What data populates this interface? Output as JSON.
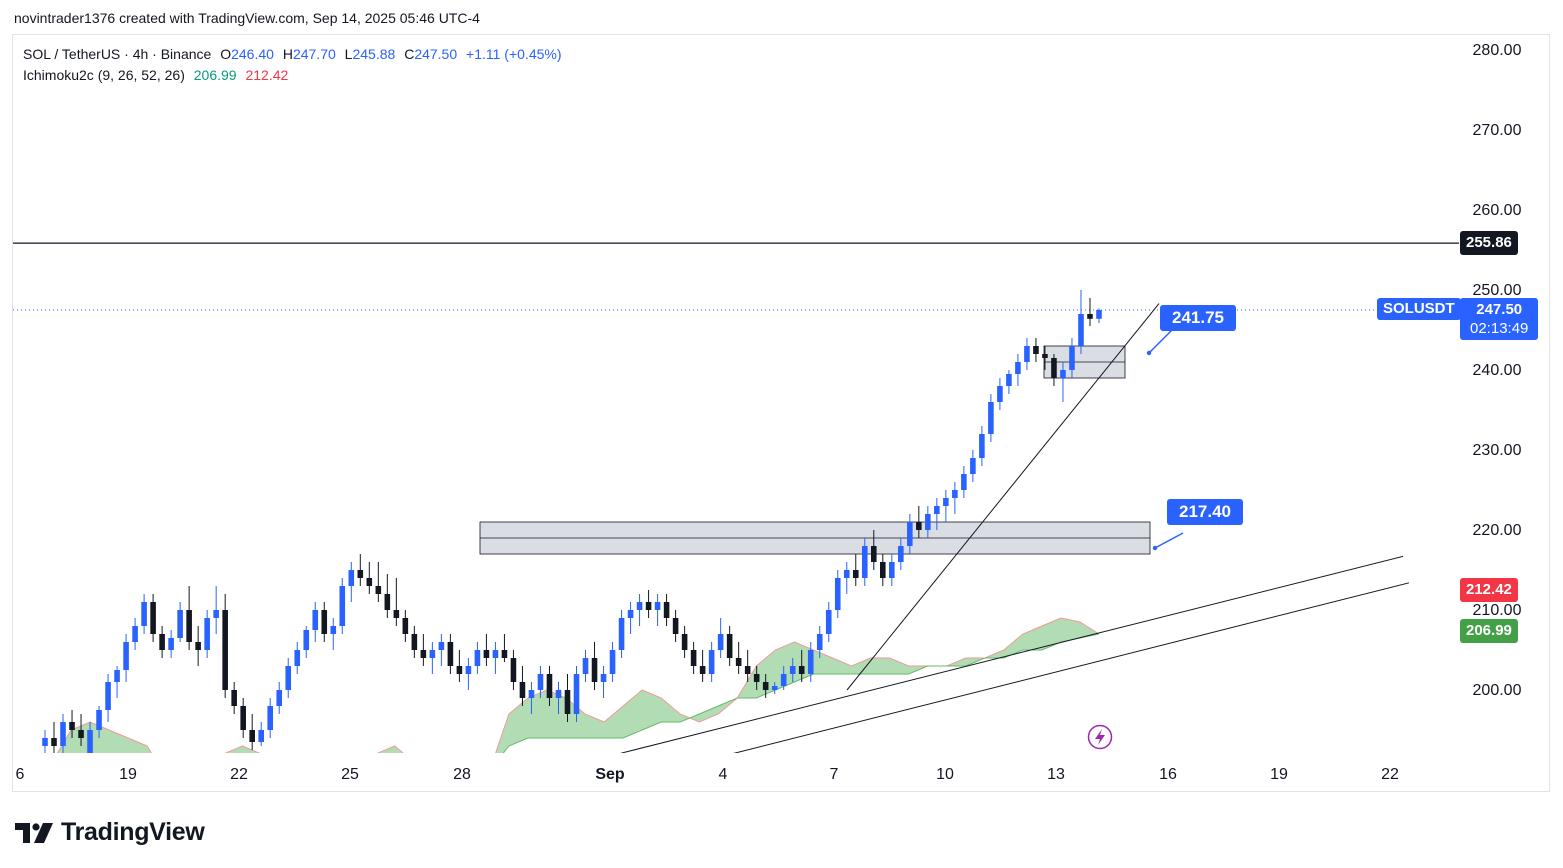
{
  "header": {
    "text": "novintrader1376 created with TradingView.com, Sep 14, 2025 05:46 UTC-4"
  },
  "legend": {
    "symbol": "SOL / TetherUS · 4h · Binance",
    "open_label": "O",
    "open": "246.40",
    "high_label": "H",
    "high": "247.70",
    "low_label": "L",
    "low": "245.88",
    "close_label": "C",
    "close": "247.50",
    "change": "+1.11 (+0.45%)",
    "indicator": "Ichimoku2c (9, 26, 52, 26)",
    "ind_value1": "206.99",
    "ind_value2": "212.42"
  },
  "price_axis": {
    "ticks": [
      "280.00",
      "270.00",
      "260.00",
      "250.00",
      "240.00",
      "230.00",
      "220.00",
      "210.00",
      "200.00"
    ]
  },
  "time_axis": {
    "ticks": [
      "6",
      "19",
      "22",
      "25",
      "28",
      "Sep",
      "4",
      "7",
      "10",
      "13",
      "16",
      "19",
      "22"
    ]
  },
  "tags": {
    "resistance": "255.86",
    "symbol_tag": "SOLUSDT",
    "last_price": "247.50",
    "countdown": "02:13:49",
    "ichimoku_red": "212.42",
    "ichimoku_green": "206.99",
    "callout_upper": "241.75",
    "callout_lower": "217.40"
  },
  "colors": {
    "up": "#2962ff",
    "down": "#131722",
    "cloud_fill": "#a5d6a7",
    "cloud_edge": "#ef9a9a",
    "callout": "#2962ff",
    "red_tag": "#f23645",
    "green_tag": "#43a047"
  },
  "branding": {
    "logo_text": "TradingView",
    "logo_icon": "tradingview-logo-icon"
  },
  "chart_data": {
    "type": "candlestick",
    "symbol": "SOL / TetherUS",
    "interval": "4h",
    "exchange": "Binance",
    "ylim": [
      191,
      281
    ],
    "x_ticks": [
      "6",
      "19",
      "22",
      "25",
      "28",
      "Sep",
      "4",
      "7",
      "10",
      "13",
      "16",
      "19",
      "22"
    ],
    "candles": [
      {
        "o": 193,
        "h": 195,
        "l": 191,
        "c": 194
      },
      {
        "o": 194,
        "h": 196,
        "l": 192,
        "c": 193
      },
      {
        "o": 193,
        "h": 197,
        "l": 192,
        "c": 196
      },
      {
        "o": 196,
        "h": 197.5,
        "l": 194,
        "c": 195
      },
      {
        "o": 195,
        "h": 197,
        "l": 193,
        "c": 194
      },
      {
        "o": 192,
        "h": 196,
        "l": 191,
        "c": 195
      },
      {
        "o": 195,
        "h": 198,
        "l": 194,
        "c": 197.5
      },
      {
        "o": 197.5,
        "h": 202,
        "l": 196,
        "c": 201
      },
      {
        "o": 201,
        "h": 203,
        "l": 199,
        "c": 202.5
      },
      {
        "o": 202.5,
        "h": 207,
        "l": 201,
        "c": 206
      },
      {
        "o": 206,
        "h": 209,
        "l": 205,
        "c": 208
      },
      {
        "o": 208,
        "h": 212,
        "l": 207,
        "c": 211
      },
      {
        "o": 211,
        "h": 212,
        "l": 206,
        "c": 207
      },
      {
        "o": 207,
        "h": 208,
        "l": 204,
        "c": 205
      },
      {
        "o": 205,
        "h": 207.5,
        "l": 204,
        "c": 206.5
      },
      {
        "o": 206.5,
        "h": 211,
        "l": 206,
        "c": 210
      },
      {
        "o": 210,
        "h": 213,
        "l": 205,
        "c": 206
      },
      {
        "o": 206,
        "h": 208,
        "l": 203,
        "c": 205
      },
      {
        "o": 205,
        "h": 210,
        "l": 204,
        "c": 209
      },
      {
        "o": 209,
        "h": 213,
        "l": 207,
        "c": 210
      },
      {
        "o": 210,
        "h": 212,
        "l": 199,
        "c": 200
      },
      {
        "o": 200,
        "h": 201,
        "l": 197,
        "c": 198
      },
      {
        "o": 198,
        "h": 199,
        "l": 194,
        "c": 195
      },
      {
        "o": 195,
        "h": 197,
        "l": 192.5,
        "c": 193.5
      },
      {
        "o": 193.5,
        "h": 196,
        "l": 193,
        "c": 195
      },
      {
        "o": 195,
        "h": 199,
        "l": 194,
        "c": 198
      },
      {
        "o": 198,
        "h": 201,
        "l": 197,
        "c": 200
      },
      {
        "o": 200,
        "h": 204,
        "l": 199,
        "c": 203
      },
      {
        "o": 203,
        "h": 206,
        "l": 202,
        "c": 205
      },
      {
        "o": 205,
        "h": 208,
        "l": 204,
        "c": 207.5
      },
      {
        "o": 207.5,
        "h": 211,
        "l": 206,
        "c": 210
      },
      {
        "o": 210,
        "h": 211,
        "l": 206,
        "c": 207
      },
      {
        "o": 207,
        "h": 209,
        "l": 205,
        "c": 208
      },
      {
        "o": 208,
        "h": 214,
        "l": 207,
        "c": 213
      },
      {
        "o": 213,
        "h": 216,
        "l": 211,
        "c": 215
      },
      {
        "o": 215,
        "h": 217,
        "l": 213,
        "c": 214
      },
      {
        "o": 214,
        "h": 216,
        "l": 212,
        "c": 213
      },
      {
        "o": 213,
        "h": 216,
        "l": 211,
        "c": 212
      },
      {
        "o": 212,
        "h": 214.5,
        "l": 209,
        "c": 210
      },
      {
        "o": 210,
        "h": 214,
        "l": 208,
        "c": 209
      },
      {
        "o": 209,
        "h": 210,
        "l": 206,
        "c": 207
      },
      {
        "o": 207,
        "h": 208,
        "l": 204,
        "c": 205
      },
      {
        "o": 205,
        "h": 207,
        "l": 203,
        "c": 204
      },
      {
        "o": 204,
        "h": 206,
        "l": 202,
        "c": 205
      },
      {
        "o": 205,
        "h": 207,
        "l": 203,
        "c": 206
      },
      {
        "o": 206,
        "h": 207,
        "l": 202,
        "c": 203
      },
      {
        "o": 203,
        "h": 205,
        "l": 201,
        "c": 202
      },
      {
        "o": 202,
        "h": 204,
        "l": 200,
        "c": 203
      },
      {
        "o": 203,
        "h": 206,
        "l": 202,
        "c": 205
      },
      {
        "o": 205,
        "h": 207,
        "l": 203,
        "c": 204
      },
      {
        "o": 204,
        "h": 206,
        "l": 202,
        "c": 205
      },
      {
        "o": 205,
        "h": 207,
        "l": 203.5,
        "c": 204
      },
      {
        "o": 204,
        "h": 205,
        "l": 200,
        "c": 201
      },
      {
        "o": 201,
        "h": 203,
        "l": 198,
        "c": 199
      },
      {
        "o": 199,
        "h": 201,
        "l": 197,
        "c": 200
      },
      {
        "o": 200,
        "h": 203,
        "l": 199,
        "c": 202
      },
      {
        "o": 202,
        "h": 203,
        "l": 198,
        "c": 199
      },
      {
        "o": 199,
        "h": 201,
        "l": 197,
        "c": 200
      },
      {
        "o": 200,
        "h": 202,
        "l": 196,
        "c": 197
      },
      {
        "o": 197,
        "h": 203,
        "l": 196,
        "c": 202
      },
      {
        "o": 202,
        "h": 205,
        "l": 201,
        "c": 204
      },
      {
        "o": 204,
        "h": 206,
        "l": 200,
        "c": 201
      },
      {
        "o": 201,
        "h": 203,
        "l": 199,
        "c": 202
      },
      {
        "o": 202,
        "h": 206,
        "l": 201,
        "c": 205
      },
      {
        "o": 205,
        "h": 210,
        "l": 204,
        "c": 209
      },
      {
        "o": 209,
        "h": 211,
        "l": 207,
        "c": 210
      },
      {
        "o": 210,
        "h": 212,
        "l": 208,
        "c": 211
      },
      {
        "o": 211,
        "h": 212.5,
        "l": 209,
        "c": 210
      },
      {
        "o": 210,
        "h": 212,
        "l": 208,
        "c": 211
      },
      {
        "o": 211,
        "h": 212,
        "l": 208,
        "c": 209
      },
      {
        "o": 209,
        "h": 210,
        "l": 206,
        "c": 207
      },
      {
        "o": 207,
        "h": 208,
        "l": 204,
        "c": 205
      },
      {
        "o": 205,
        "h": 206,
        "l": 202,
        "c": 203
      },
      {
        "o": 203,
        "h": 205,
        "l": 201,
        "c": 202
      },
      {
        "o": 202,
        "h": 206,
        "l": 201,
        "c": 205
      },
      {
        "o": 205,
        "h": 209,
        "l": 204,
        "c": 207
      },
      {
        "o": 207,
        "h": 208,
        "l": 203,
        "c": 204
      },
      {
        "o": 204,
        "h": 206,
        "l": 202,
        "c": 203
      },
      {
        "o": 203,
        "h": 205,
        "l": 201,
        "c": 202
      },
      {
        "o": 202,
        "h": 203,
        "l": 200,
        "c": 201
      },
      {
        "o": 201,
        "h": 202,
        "l": 199,
        "c": 200
      },
      {
        "o": 200,
        "h": 201,
        "l": 199.5,
        "c": 200.5
      },
      {
        "o": 200.5,
        "h": 203,
        "l": 200,
        "c": 202
      },
      {
        "o": 202,
        "h": 204,
        "l": 201,
        "c": 203
      },
      {
        "o": 203,
        "h": 205,
        "l": 201,
        "c": 202
      },
      {
        "o": 202,
        "h": 206,
        "l": 201,
        "c": 205
      },
      {
        "o": 205,
        "h": 208,
        "l": 204,
        "c": 207
      },
      {
        "o": 207,
        "h": 211,
        "l": 206,
        "c": 210
      },
      {
        "o": 210,
        "h": 215,
        "l": 209,
        "c": 214
      },
      {
        "o": 214,
        "h": 216,
        "l": 212,
        "c": 215
      },
      {
        "o": 215,
        "h": 217,
        "l": 213,
        "c": 214
      },
      {
        "o": 214,
        "h": 219,
        "l": 213,
        "c": 218
      },
      {
        "o": 218,
        "h": 220,
        "l": 215,
        "c": 216
      },
      {
        "o": 216,
        "h": 217,
        "l": 213,
        "c": 214
      },
      {
        "o": 214,
        "h": 217,
        "l": 213,
        "c": 216
      },
      {
        "o": 216,
        "h": 219,
        "l": 215,
        "c": 218
      },
      {
        "o": 218,
        "h": 222,
        "l": 217,
        "c": 221
      },
      {
        "o": 221,
        "h": 223,
        "l": 219,
        "c": 220
      },
      {
        "o": 220,
        "h": 223,
        "l": 219,
        "c": 222
      },
      {
        "o": 222,
        "h": 224,
        "l": 220,
        "c": 223
      },
      {
        "o": 223,
        "h": 225,
        "l": 221,
        "c": 224
      },
      {
        "o": 224,
        "h": 226,
        "l": 222,
        "c": 225
      },
      {
        "o": 225,
        "h": 228,
        "l": 224,
        "c": 227
      },
      {
        "o": 227,
        "h": 230,
        "l": 226,
        "c": 229
      },
      {
        "o": 229,
        "h": 233,
        "l": 228,
        "c": 232
      },
      {
        "o": 232,
        "h": 237,
        "l": 231,
        "c": 236
      },
      {
        "o": 236,
        "h": 239,
        "l": 235,
        "c": 238
      },
      {
        "o": 238,
        "h": 240,
        "l": 237,
        "c": 239.5
      },
      {
        "o": 239.5,
        "h": 242,
        "l": 238,
        "c": 241
      },
      {
        "o": 241,
        "h": 244,
        "l": 240,
        "c": 243
      },
      {
        "o": 243,
        "h": 244,
        "l": 241,
        "c": 242
      },
      {
        "o": 242,
        "h": 243,
        "l": 240,
        "c": 241.5
      },
      {
        "o": 241.5,
        "h": 242,
        "l": 238,
        "c": 239
      },
      {
        "o": 239,
        "h": 241,
        "l": 236,
        "c": 240
      },
      {
        "o": 240,
        "h": 244,
        "l": 239,
        "c": 243
      },
      {
        "o": 243,
        "h": 250,
        "l": 242,
        "c": 247
      },
      {
        "o": 247,
        "h": 249,
        "l": 245.5,
        "c": 246.4
      },
      {
        "o": 246.4,
        "h": 247.7,
        "l": 245.88,
        "c": 247.5
      }
    ],
    "ichimoku": {
      "span_a_end": 212.42,
      "span_b_end": 206.99,
      "cloud_upper": [
        188,
        191,
        195,
        196,
        195,
        194,
        193,
        189,
        187,
        189,
        192,
        193,
        192,
        189,
        185,
        186,
        188,
        190,
        192,
        193,
        191,
        188,
        186,
        187,
        190,
        197,
        199,
        200,
        199,
        197,
        196,
        198,
        200,
        199,
        197,
        196,
        197,
        199,
        203,
        205,
        206,
        205,
        204,
        203,
        204,
        204,
        203,
        203,
        203,
        204,
        204,
        205,
        207,
        208,
        209,
        208.5,
        207
      ],
      "cloud_lower": [
        188,
        189,
        190,
        190,
        190,
        190,
        190,
        189,
        187,
        188,
        189,
        190,
        191,
        189,
        186,
        186,
        187,
        188,
        189,
        191,
        191,
        188,
        187,
        188,
        190,
        193,
        194,
        194,
        194,
        194,
        194,
        194,
        195,
        196,
        196,
        197,
        198,
        199,
        199,
        200,
        201,
        202,
        202,
        202,
        202,
        202,
        202,
        203,
        203,
        203,
        204,
        204,
        205,
        205,
        206,
        206.5,
        207
      ]
    },
    "levels": {
      "horizontal_resistance": 255.86,
      "zones": [
        [
          217,
          221
        ],
        [
          239,
          243
        ]
      ]
    },
    "trendlines": [
      {
        "from": [
          "Sep 7",
          200
        ],
        "to": [
          "Sep 14",
          247
        ]
      },
      {
        "from": [
          "Sep 1",
          192
        ],
        "to": [
          "Sep 20",
          217
        ]
      },
      {
        "from": [
          "Sep 2",
          191
        ],
        "to": [
          "Sep 20",
          213.5
        ]
      }
    ],
    "callouts": [
      241.75,
      217.4
    ]
  }
}
